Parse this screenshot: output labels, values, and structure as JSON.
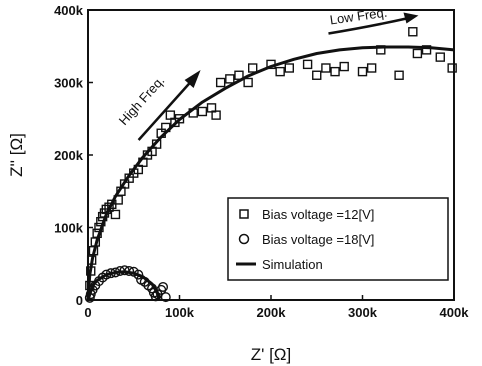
{
  "chart_data": {
    "type": "scatter",
    "xlabel": "Z' [Ω]",
    "ylabel": "Z'' [Ω]",
    "xlim": [
      0,
      400000
    ],
    "ylim": [
      0,
      400000
    ],
    "x_ticks": [
      {
        "value": 0,
        "label": "0"
      },
      {
        "value": 100000,
        "label": "100k"
      },
      {
        "value": 200000,
        "label": "200k"
      },
      {
        "value": 300000,
        "label": "300k"
      },
      {
        "value": 400000,
        "label": "400k"
      }
    ],
    "y_ticks": [
      {
        "value": 0,
        "label": "0"
      },
      {
        "value": 100000,
        "label": "100k"
      },
      {
        "value": 200000,
        "label": "200k"
      },
      {
        "value": 300000,
        "label": "300k"
      },
      {
        "value": 400000,
        "label": "400k"
      }
    ],
    "grid": false,
    "legend_position": "lower-right",
    "series": [
      {
        "name": "Bias voltage =12[V]",
        "marker": "square",
        "points": [
          [
            2000,
            20000
          ],
          [
            3000,
            40000
          ],
          [
            4000,
            55000
          ],
          [
            6000,
            68000
          ],
          [
            8000,
            80000
          ],
          [
            10000,
            92000
          ],
          [
            12000,
            100000
          ],
          [
            14000,
            108000
          ],
          [
            16000,
            115000
          ],
          [
            18000,
            120000
          ],
          [
            20000,
            125000
          ],
          [
            23000,
            128000
          ],
          [
            26000,
            132000
          ],
          [
            30000,
            118000
          ],
          [
            33000,
            138000
          ],
          [
            36000,
            150000
          ],
          [
            40000,
            160000
          ],
          [
            45000,
            168000
          ],
          [
            50000,
            175000
          ],
          [
            55000,
            180000
          ],
          [
            60000,
            190000
          ],
          [
            65000,
            200000
          ],
          [
            70000,
            205000
          ],
          [
            75000,
            215000
          ],
          [
            80000,
            230000
          ],
          [
            85000,
            238000
          ],
          [
            90000,
            255000
          ],
          [
            95000,
            245000
          ],
          [
            100000,
            250000
          ],
          [
            115000,
            258000
          ],
          [
            125000,
            260000
          ],
          [
            135000,
            265000
          ],
          [
            140000,
            255000
          ],
          [
            145000,
            300000
          ],
          [
            155000,
            305000
          ],
          [
            165000,
            310000
          ],
          [
            175000,
            300000
          ],
          [
            180000,
            320000
          ],
          [
            200000,
            325000
          ],
          [
            210000,
            315000
          ],
          [
            220000,
            320000
          ],
          [
            240000,
            325000
          ],
          [
            250000,
            310000
          ],
          [
            260000,
            320000
          ],
          [
            270000,
            315000
          ],
          [
            280000,
            322000
          ],
          [
            300000,
            315000
          ],
          [
            310000,
            320000
          ],
          [
            320000,
            345000
          ],
          [
            340000,
            310000
          ],
          [
            355000,
            370000
          ],
          [
            360000,
            340000
          ],
          [
            370000,
            345000
          ],
          [
            385000,
            335000
          ],
          [
            398000,
            320000
          ]
        ]
      },
      {
        "name": "Bias voltage =18[V]",
        "marker": "circle",
        "points": [
          [
            2000,
            3000
          ],
          [
            3000,
            8000
          ],
          [
            5000,
            14000
          ],
          [
            8000,
            20000
          ],
          [
            12000,
            26000
          ],
          [
            16000,
            31000
          ],
          [
            20000,
            35000
          ],
          [
            25000,
            37000
          ],
          [
            30000,
            38000
          ],
          [
            35000,
            40000
          ],
          [
            40000,
            41000
          ],
          [
            45000,
            40000
          ],
          [
            50000,
            39000
          ],
          [
            55000,
            35000
          ],
          [
            58000,
            28000
          ],
          [
            62000,
            25000
          ],
          [
            66000,
            20000
          ],
          [
            70000,
            16000
          ],
          [
            72000,
            10000
          ],
          [
            74000,
            5000
          ],
          [
            76000,
            8000
          ],
          [
            80000,
            14000
          ],
          [
            82000,
            18000
          ],
          [
            85000,
            4000
          ]
        ]
      },
      {
        "name": "Simulation",
        "type": "line",
        "points": [
          [
            0,
            0
          ],
          [
            2000,
            35000
          ],
          [
            5000,
            58000
          ],
          [
            10000,
            83000
          ],
          [
            20000,
            118000
          ],
          [
            30000,
            143000
          ],
          [
            45000,
            172000
          ],
          [
            60000,
            197000
          ],
          [
            80000,
            225000
          ],
          [
            100000,
            249000
          ],
          [
            125000,
            273000
          ],
          [
            150000,
            292000
          ],
          [
            175000,
            309000
          ],
          [
            200000,
            322000
          ],
          [
            225000,
            332000
          ],
          [
            250000,
            340000
          ],
          [
            275000,
            345000
          ],
          [
            300000,
            348000
          ],
          [
            325000,
            349000
          ],
          [
            350000,
            349000
          ],
          [
            375000,
            348000
          ],
          [
            400000,
            345000
          ]
        ]
      },
      {
        "name": "",
        "type": "line",
        "points": [
          [
            0,
            0
          ],
          [
            5000,
            20000
          ],
          [
            10000,
            27000
          ],
          [
            20000,
            35000
          ],
          [
            30000,
            38000
          ],
          [
            40000,
            39000
          ],
          [
            50000,
            37000
          ],
          [
            60000,
            32000
          ],
          [
            70000,
            22000
          ],
          [
            75000,
            12000
          ],
          [
            78000,
            0
          ]
        ]
      }
    ],
    "annotations": [
      {
        "text": "High Freq.",
        "x": 40000,
        "y": 240000
      },
      {
        "text": "Low Freq.",
        "x": 265000,
        "y": 380000
      }
    ]
  }
}
